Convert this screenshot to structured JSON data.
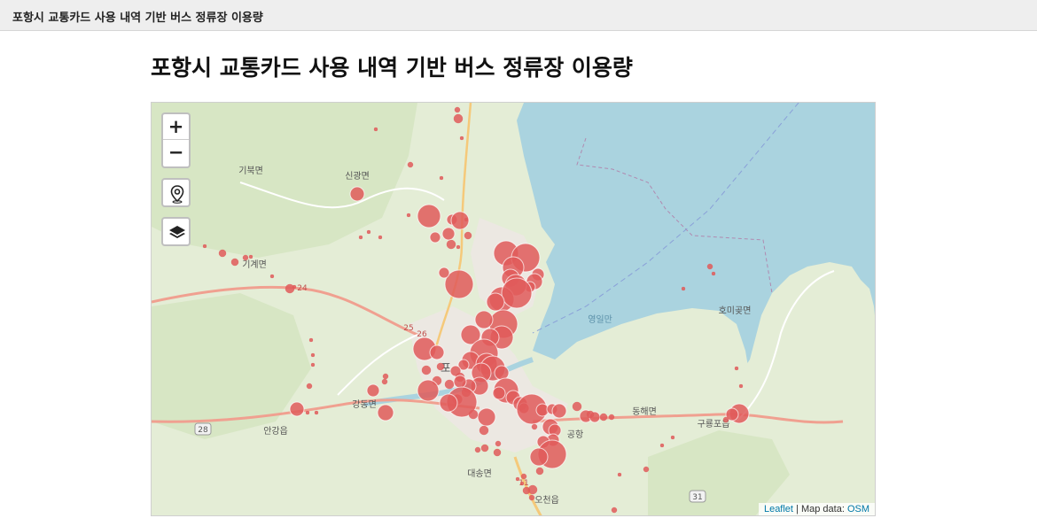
{
  "header": {
    "title": "포항시 교통카드 사용 내역 기반 버스 정류장 이용량"
  },
  "page": {
    "title": "포항시 교통카드 사용 내역 기반 버스 정류장 이용량"
  },
  "map": {
    "zoom_in_label": "+",
    "zoom_out_label": "−",
    "place_labels": [
      "기북면",
      "신광면",
      "기계면",
      "포",
      "강동면",
      "안강읍",
      "대송면",
      "오천읍",
      "동해면",
      "구룡포읍",
      "호미곶면",
      "영일만",
      "공항"
    ],
    "road_numbers": [
      "24",
      "25",
      "26",
      "28",
      "31",
      "11"
    ],
    "marker_color": "#e05a5a",
    "water_color": "#aad3df",
    "land_color": "#e4edd6"
  },
  "attribution": {
    "leaflet": "Leaflet",
    "separator": " | Map data: ",
    "osm": "OSM"
  }
}
